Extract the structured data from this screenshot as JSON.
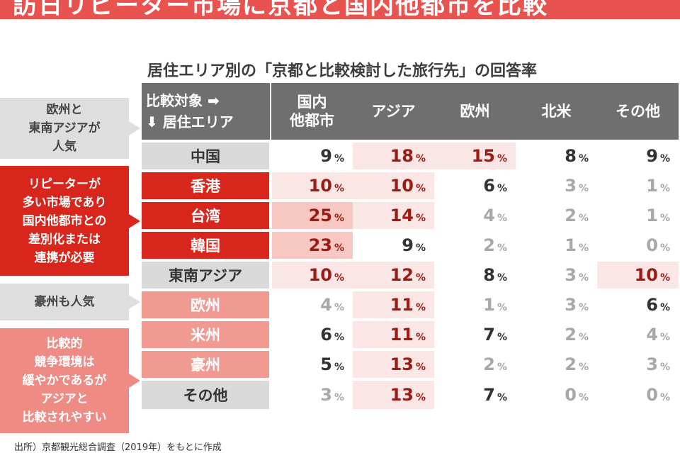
{
  "banner": {
    "text": "訪日リピーター市場に京都と国内他都市を比較"
  },
  "chart_data": {
    "type": "table",
    "title": "居住エリア別の「京都と比較検討した旅行先」の回答率",
    "corner": {
      "top": "比較対象 ➡",
      "bottom": "⬇ 居住エリア"
    },
    "columns": [
      "国内\n他都市",
      "アジア",
      "欧州",
      "北米",
      "その他"
    ],
    "unit": "%",
    "rows": [
      {
        "label": "中国",
        "values": [
          9,
          18,
          15,
          8,
          9
        ]
      },
      {
        "label": "香港",
        "values": [
          10,
          10,
          6,
          3,
          1
        ]
      },
      {
        "label": "台湾",
        "values": [
          25,
          14,
          4,
          2,
          1
        ]
      },
      {
        "label": "韓国",
        "values": [
          23,
          9,
          2,
          1,
          0
        ]
      },
      {
        "label": "東南アジア",
        "values": [
          10,
          12,
          8,
          3,
          10
        ]
      },
      {
        "label": "欧州",
        "values": [
          4,
          11,
          1,
          3,
          6
        ]
      },
      {
        "label": "米州",
        "values": [
          6,
          11,
          7,
          2,
          4
        ]
      },
      {
        "label": "豪州",
        "values": [
          5,
          13,
          2,
          2,
          3
        ]
      },
      {
        "label": "その他",
        "values": [
          3,
          13,
          7,
          0,
          0
        ]
      }
    ]
  },
  "annotations": [
    {
      "text": "欧州と\n東南アジアが\n人気"
    },
    {
      "text": "リピーターが\n多い市場であり\n国内他都市との\n差別化または\n連携が必要"
    },
    {
      "text": "豪州も人気"
    },
    {
      "text": "比較的\n競争環境は\n緩やかであるが\nアジアと\n比較されやすい"
    }
  ],
  "source": "出所）京都観光総合調査（2019年）をもとに作成",
  "colors": {
    "banner": "#e9534f",
    "header": "#6f6f6f",
    "red": "#d8261c",
    "salmon": "#f19a92",
    "gray": "#d9d9d9",
    "highlight_light": "#fae6e4",
    "highlight_mid": "#f8c7c1",
    "highlight_text": "#9e1b14"
  }
}
